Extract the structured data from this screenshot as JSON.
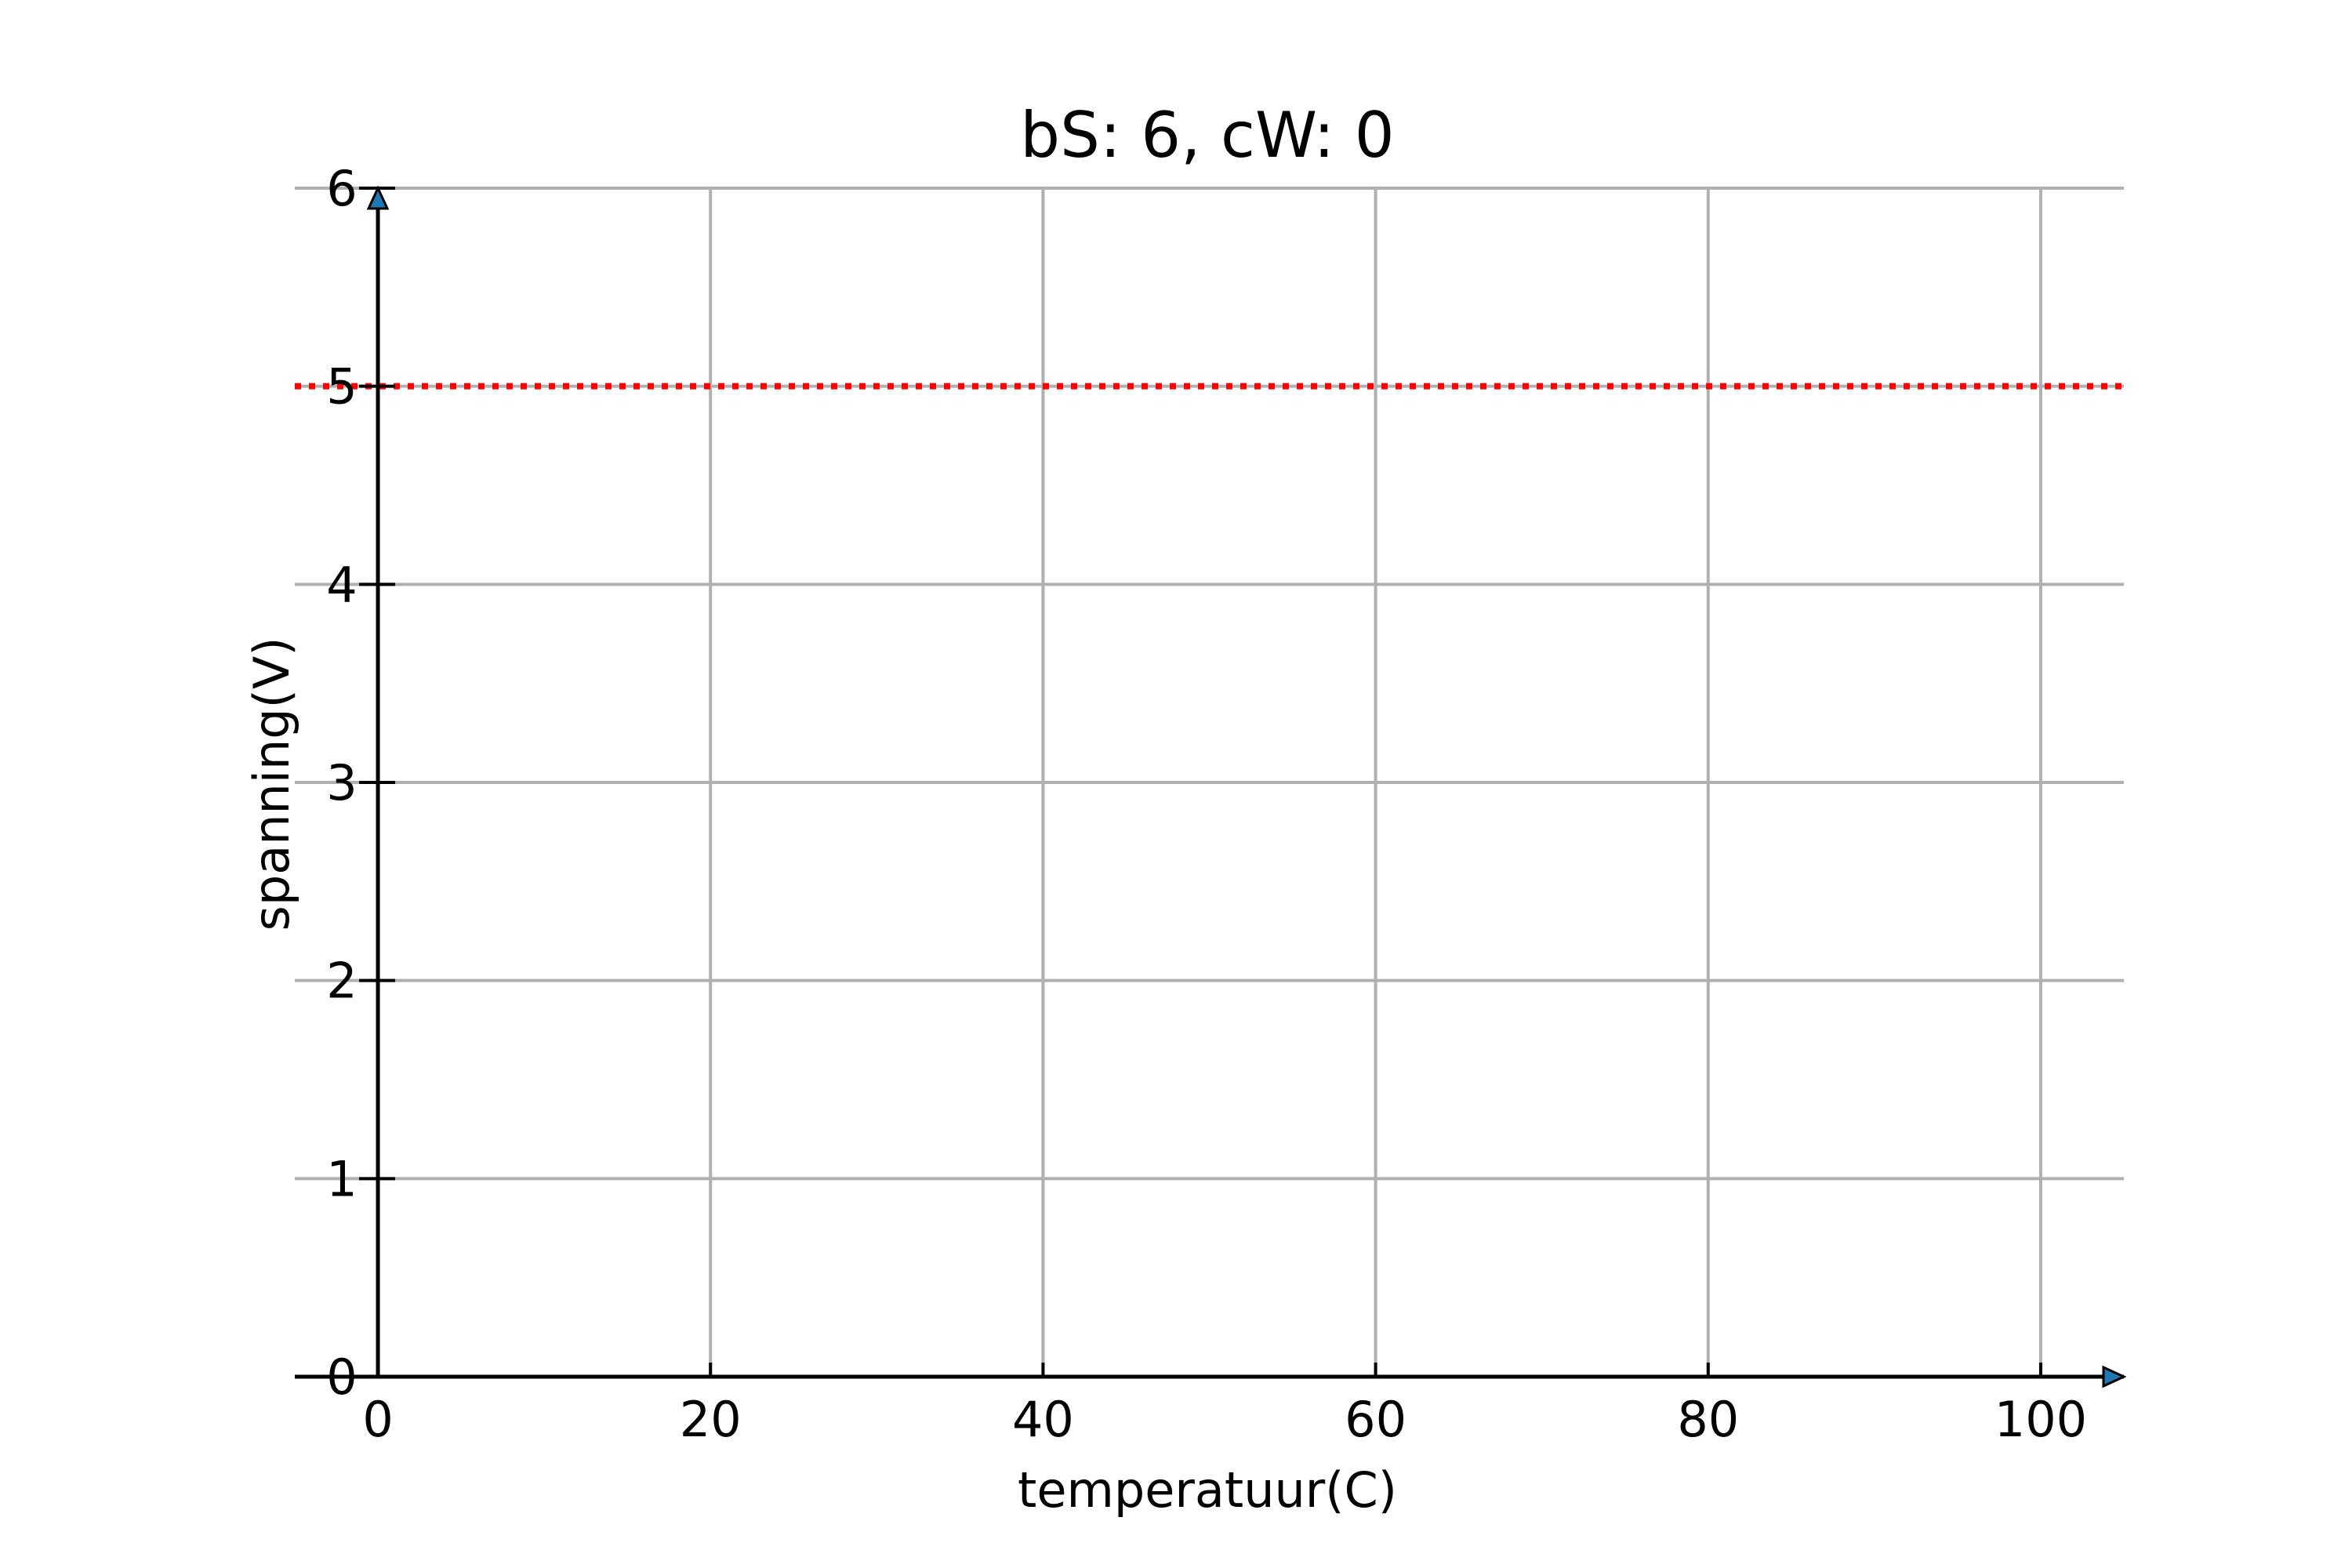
{
  "chart_data": {
    "type": "line",
    "title": "bS: 6, cW: 0",
    "xlabel": "temperatuur(C)",
    "ylabel": "spanning(V)",
    "xlim": [
      -5,
      105
    ],
    "ylim": [
      0,
      6
    ],
    "x_ticks": [
      0,
      20,
      40,
      60,
      80,
      100
    ],
    "y_ticks": [
      0,
      1,
      2,
      3,
      4,
      5,
      6
    ],
    "grid": true,
    "series": [
      {
        "style": "dotted",
        "color": "#ff0000",
        "x": [
          -5,
          105
        ],
        "y": [
          5,
          5
        ]
      }
    ],
    "colors": {
      "grid": "#b0b0b0",
      "axis": "#000000",
      "arrow": "#1f77b4"
    }
  }
}
